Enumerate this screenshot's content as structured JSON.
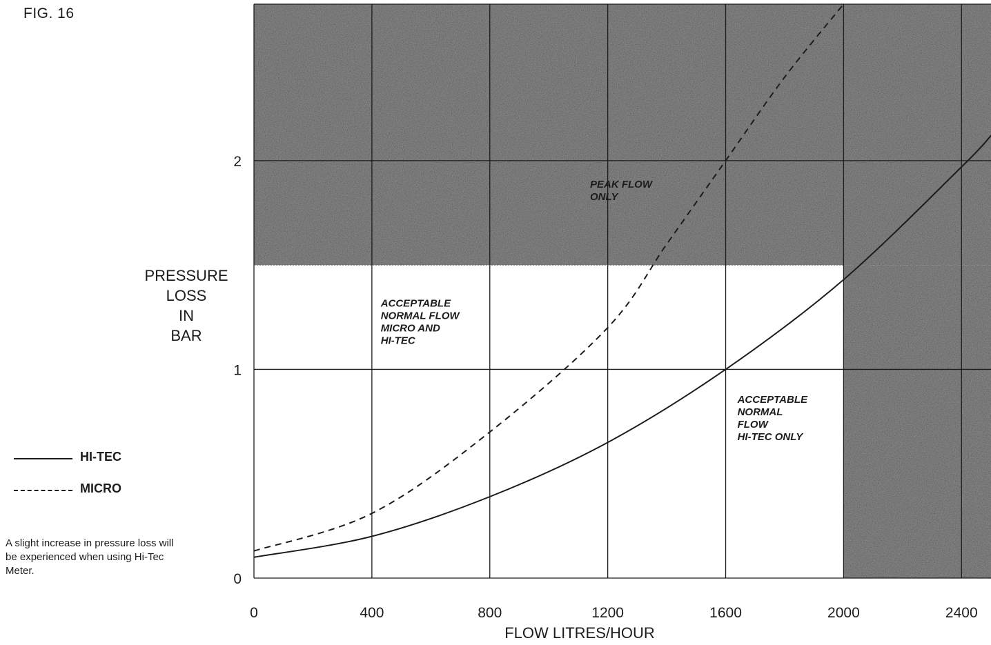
{
  "figure_label": "FIG. 16",
  "legend": [
    {
      "label": "HI-TEC",
      "style": "solid"
    },
    {
      "label": "MICRO",
      "style": "dashed"
    }
  ],
  "note": "A slight increase in pressure loss will be experienced when using Hi-Tec Meter.",
  "chart_data": {
    "type": "line",
    "title": "",
    "xlabel": "FLOW LITRES/HOUR",
    "ylabel": [
      "PRESSURE",
      "LOSS",
      "IN",
      "BAR"
    ],
    "xlim": [
      0,
      2500
    ],
    "ylim": [
      0,
      2.75
    ],
    "x_ticks": [
      0,
      400,
      800,
      1200,
      1600,
      2000,
      2400
    ],
    "x_tick_labels": [
      "0",
      "400",
      "800",
      "1200",
      "1600",
      "2000",
      "2400"
    ],
    "y_ticks": [
      0,
      1,
      2
    ],
    "y_tick_labels": [
      "0",
      "1",
      "2"
    ],
    "grid": true,
    "series": [
      {
        "name": "HI-TEC",
        "style": "solid",
        "color": "#1c1c1c",
        "x": [
          0,
          400,
          800,
          1200,
          1600,
          2000,
          2400,
          2500
        ],
        "y": [
          0.1,
          0.2,
          0.39,
          0.65,
          1.0,
          1.43,
          1.97,
          2.12
        ]
      },
      {
        "name": "MICRO",
        "style": "dashed",
        "color": "#1c1c1c",
        "x": [
          0,
          400,
          800,
          1200,
          1400,
          1600,
          1800,
          2000
        ],
        "y": [
          0.13,
          0.31,
          0.7,
          1.2,
          1.6,
          2.0,
          2.4,
          2.75
        ]
      }
    ],
    "regions": [
      {
        "label": [
          "PEAK FLOW",
          "ONLY"
        ],
        "shaded": true,
        "x": [
          0,
          2500
        ],
        "y": [
          1.5,
          2.75
        ],
        "label_at": [
          1140,
          1.87
        ]
      },
      {
        "label": [],
        "shaded": true,
        "x": [
          2000,
          2500
        ],
        "y": [
          0,
          1.5
        ]
      },
      {
        "label": [
          "ACCEPTABLE",
          "NORMAL FLOW",
          "MICRO AND",
          "HI-TEC"
        ],
        "shaded": false,
        "x": [
          0,
          1200
        ],
        "y": [
          0,
          1.5
        ],
        "label_at": [
          430,
          1.3
        ]
      },
      {
        "label": [
          "ACCEPTABLE",
          "NORMAL",
          "FLOW",
          "HI-TEC ONLY"
        ],
        "shaded": false,
        "x": [
          1200,
          2000
        ],
        "y": [
          0,
          1.0
        ],
        "label_at": [
          1640,
          0.84
        ]
      }
    ],
    "shade_color": "#8e8e8e"
  }
}
